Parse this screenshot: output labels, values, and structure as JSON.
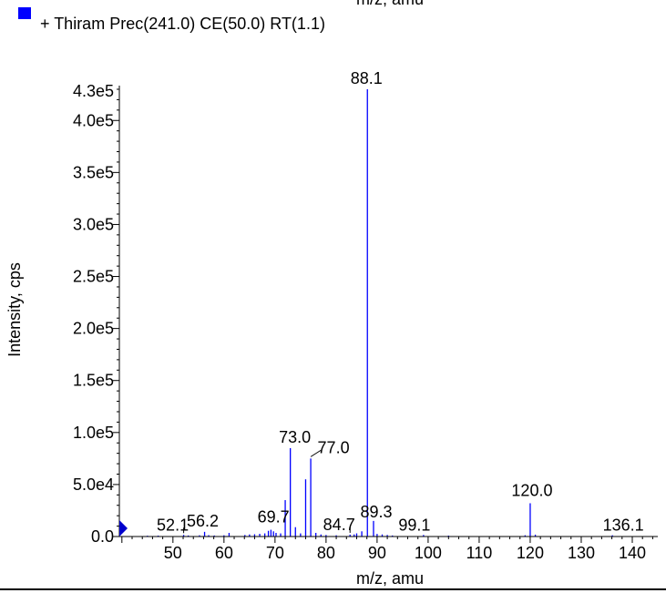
{
  "header": {
    "top_cut_label": "m/z, amu",
    "legend_label": "+ Thiram Prec(241.0) CE(50.0) RT(1.1)",
    "legend_color": "#0000ff"
  },
  "chart_data": {
    "type": "bar",
    "title": "",
    "xlabel": "m/z, amu",
    "ylabel": "Intensity, cps",
    "xlim": [
      39.5,
      145
    ],
    "ylim": [
      0,
      430000
    ],
    "y_max_label": "4.3e5",
    "bar_color": "#0000ff",
    "grid": false,
    "legend_position": "top-left",
    "xticks": [
      50,
      60,
      70,
      80,
      90,
      100,
      110,
      120,
      130,
      140
    ],
    "xtick_labels": [
      "50",
      "60",
      "70",
      "80",
      "90",
      "100",
      "110",
      "120",
      "130",
      "140"
    ],
    "yticks": [
      0,
      50000,
      100000,
      150000,
      200000,
      250000,
      300000,
      350000,
      400000
    ],
    "ytick_labels": [
      "0.0",
      "5.0e4",
      "1.0e5",
      "1.5e5",
      "2.0e5",
      "2.5e5",
      "3.0e5",
      "3.5e5",
      "4.0e5"
    ],
    "series": [
      {
        "x": [
          45.0,
          47.1,
          52.1,
          53.0,
          55.2,
          56.2,
          57.0,
          58.1,
          60.0,
          61.0,
          64.1,
          65.0,
          66.0,
          67.0,
          68.0,
          68.7,
          69.2,
          69.7,
          70.2,
          71.1,
          72.0,
          73.0,
          74.0,
          75.0,
          76.0,
          77.0,
          78.0,
          79.0,
          80.0,
          82.0,
          84.7,
          85.5,
          86.0,
          87.0,
          88.1,
          89.3,
          90.0,
          91.0,
          92.0,
          93.0,
          99.1,
          104.0,
          119.0,
          120.0,
          121.0,
          136.1
        ],
        "y": [
          800,
          900,
          1500,
          1000,
          1200,
          4500,
          1300,
          1000,
          1200,
          3500,
          1500,
          2000,
          2200,
          2600,
          3000,
          5500,
          6500,
          5000,
          3500,
          3000,
          35000,
          85000,
          9000,
          3000,
          55000,
          75000,
          3500,
          2000,
          1500,
          1200,
          1800,
          2000,
          3000,
          5000,
          430000,
          15000,
          2500,
          2000,
          1500,
          1000,
          1500,
          900,
          1200,
          32000,
          1800,
          1200
        ]
      }
    ],
    "peak_labels": [
      {
        "x": 52.1,
        "y": 1500,
        "text": "52.1"
      },
      {
        "x": 56.2,
        "y": 4500,
        "text": "56.2"
      },
      {
        "x": 69.7,
        "y": 5000,
        "text": "69.7"
      },
      {
        "x": 73.0,
        "y": 85000,
        "text": "73.0"
      },
      {
        "x": 77.0,
        "y": 75000,
        "text": "77.0"
      },
      {
        "x": 84.7,
        "y": 1800,
        "text": "84.7"
      },
      {
        "x": 88.1,
        "y": 430000,
        "text": "88.1"
      },
      {
        "x": 89.3,
        "y": 15000,
        "text": "89.3"
      },
      {
        "x": 99.1,
        "y": 1500,
        "text": "99.1"
      },
      {
        "x": 120.0,
        "y": 32000,
        "text": "120.0"
      },
      {
        "x": 136.1,
        "y": 1200,
        "text": "136.1"
      }
    ]
  }
}
